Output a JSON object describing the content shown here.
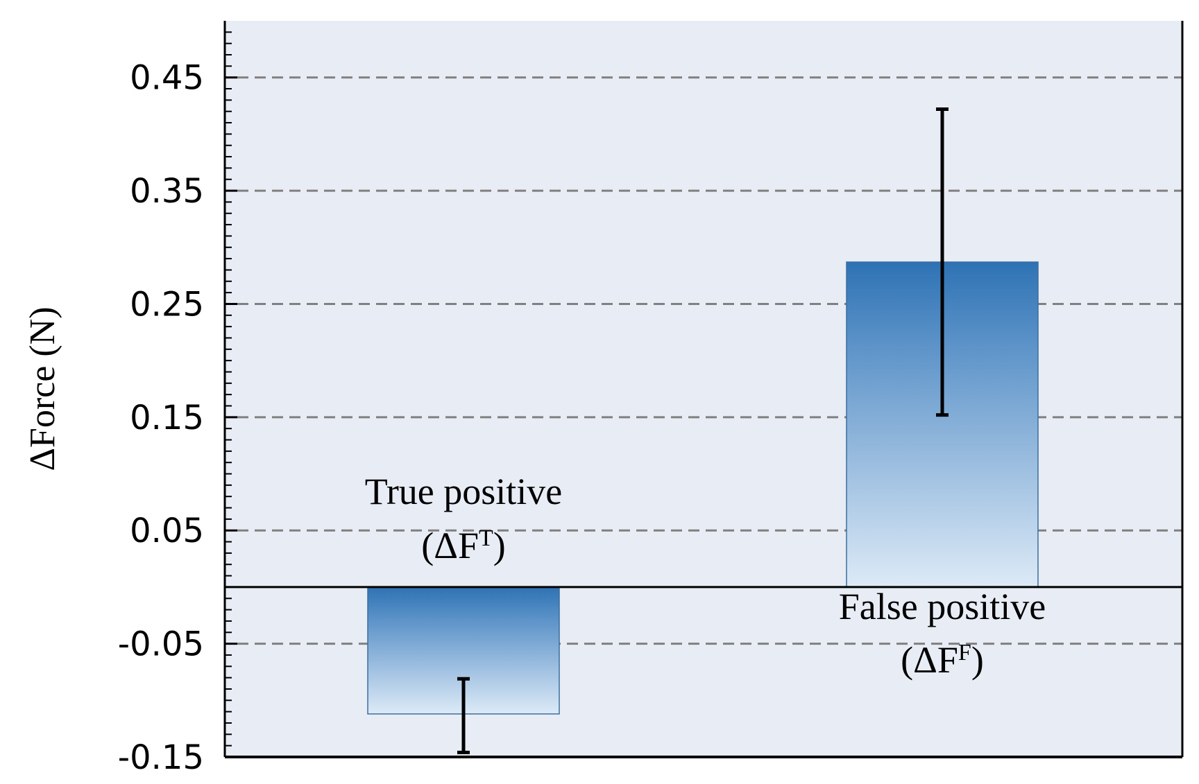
{
  "chart_data": {
    "type": "bar",
    "ylabel": "ΔForce (N)",
    "ylim": [
      -0.15,
      0.5
    ],
    "yticks": [
      0.45,
      0.35,
      0.25,
      0.15,
      0.05,
      -0.05,
      -0.15
    ],
    "ytick_labels": [
      "0.45",
      "0.35",
      "0.25",
      "0.15",
      "0.05",
      "-0.05",
      "-0.15"
    ],
    "minor_tick_step": 0.01,
    "grid": "dashed horizontal lines at major ticks",
    "categories": [
      {
        "line1": "True positive",
        "line2_prefix": "(ΔF",
        "line2_sup": "T",
        "line2_suffix": ")"
      },
      {
        "line1": "False positive",
        "line2_prefix": "(ΔF",
        "line2_sup": "F",
        "line2_suffix": ")"
      }
    ],
    "values": [
      -0.112,
      0.287
    ],
    "error_bars": [
      {
        "low": -0.146,
        "high": -0.081
      },
      {
        "low": 0.152,
        "high": 0.422
      }
    ],
    "colors": {
      "plot_background": "#e8ecf5",
      "bar_top": "#2e72b4",
      "bar_bottom": "#ddeaf7",
      "bar_edge": "#3b6e9e",
      "grid": "#808080",
      "axis": "#000000",
      "error_bar": "#000000"
    }
  }
}
